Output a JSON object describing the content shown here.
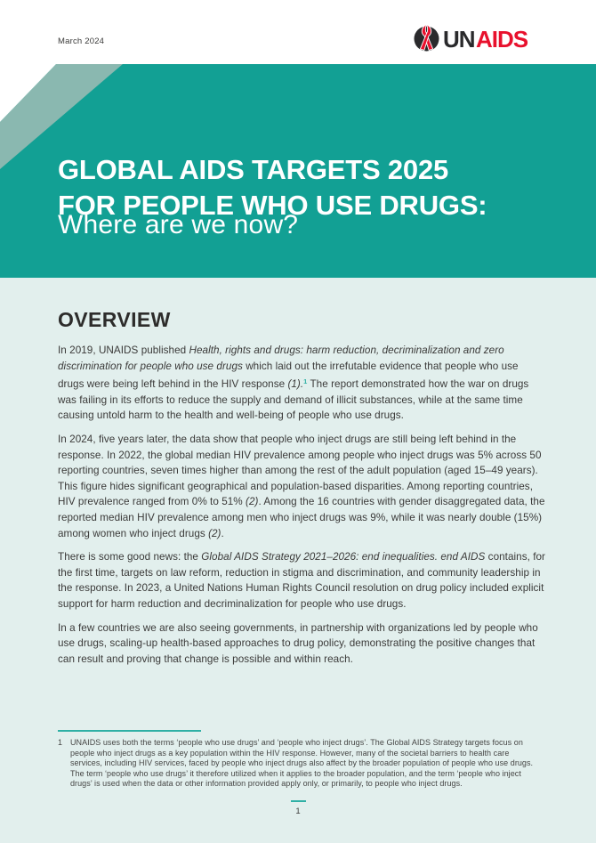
{
  "header": {
    "date": "March 2024",
    "logo": {
      "un": "UN",
      "aids": "AIDS"
    }
  },
  "banner": {
    "title_line1": "GLOBAL AIDS TARGETS 2025",
    "title_line2": "FOR PEOPLE WHO USE DRUGS:",
    "subtitle": "Where are we now?"
  },
  "overview": {
    "heading": "OVERVIEW",
    "paragraphs": [
      {
        "segments": [
          {
            "t": "In 2019, UNAIDS published ",
            "s": "n"
          },
          {
            "t": "Health, rights and drugs: harm reduction, decriminalization and zero discrimination for people who use drugs",
            "s": "i"
          },
          {
            "t": " which laid out the irrefutable evidence that people who use drugs were being left behind in the HIV response ",
            "s": "n"
          },
          {
            "t": "(1).",
            "s": "i"
          },
          {
            "t": "1",
            "s": "sup"
          },
          {
            "t": " The report demonstrated how the war on drugs was failing in its efforts to reduce the supply and demand of illicit substances, while at the same time causing untold harm to the health and well-being of people who use drugs.",
            "s": "n"
          }
        ]
      },
      {
        "segments": [
          {
            "t": "In 2024, five years later, the data show that people who inject drugs are still being left behind in the response. In 2022, the global median HIV prevalence among people who inject drugs was 5% across 50 reporting countries, seven times higher than among the rest of the adult population (aged 15–49 years). This figure hides significant geographical and population-based disparities. Among reporting countries, HIV prevalence ranged from 0% to 51% ",
            "s": "n"
          },
          {
            "t": "(2)",
            "s": "i"
          },
          {
            "t": ". Among the 16 countries with gender disaggregated data, the reported median HIV prevalence among men who inject drugs was 9%, while it was nearly double (15%) among women who inject drugs ",
            "s": "n"
          },
          {
            "t": "(2)",
            "s": "i"
          },
          {
            "t": ".",
            "s": "n"
          }
        ]
      },
      {
        "segments": [
          {
            "t": "There is some good news: the ",
            "s": "n"
          },
          {
            "t": "Global AIDS Strategy 2021–2026: end inequalities. end AIDS",
            "s": "i"
          },
          {
            "t": " contains, for the first time, targets on law reform, reduction in stigma and discrimination, and community leadership in the response. In 2023, a United Nations Human Rights Council resolution on drug policy included explicit support for harm reduction and decriminalization for people who use drugs.",
            "s": "n"
          }
        ]
      },
      {
        "segments": [
          {
            "t": "In a few countries we are also seeing governments, in partnership with organizations led by people who use drugs, scaling-up health-based approaches to drug policy, demonstrating the positive changes that can result and proving that change is possible and within reach.",
            "s": "n"
          }
        ]
      }
    ]
  },
  "footnote": {
    "marker": "1",
    "text": "UNAIDS uses both the terms ‘people who use drugs’ and ‘people who inject drugs’. The Global AIDS Strategy targets focus on people who inject drugs as a key population within the HIV response. However, many of the societal barriers to health care services, including HIV services, faced by people who inject drugs also affect by the broader population of people who use drugs. The term ‘people who use drugs’ it therefore utilized when it applies to the broader population, and the term ‘people who inject drugs’ is used when the data or other information provided apply only, or primarily, to people who inject drugs."
  },
  "footer": {
    "page_number": "1"
  },
  "colors": {
    "banner_teal": "#12a094",
    "stripe_teal": "#8ab8b0",
    "page_mint": "#e2efed",
    "accent_teal": "#2fb0a5",
    "logo_dark": "#2a2a2c",
    "logo_red": "#e8112d"
  }
}
